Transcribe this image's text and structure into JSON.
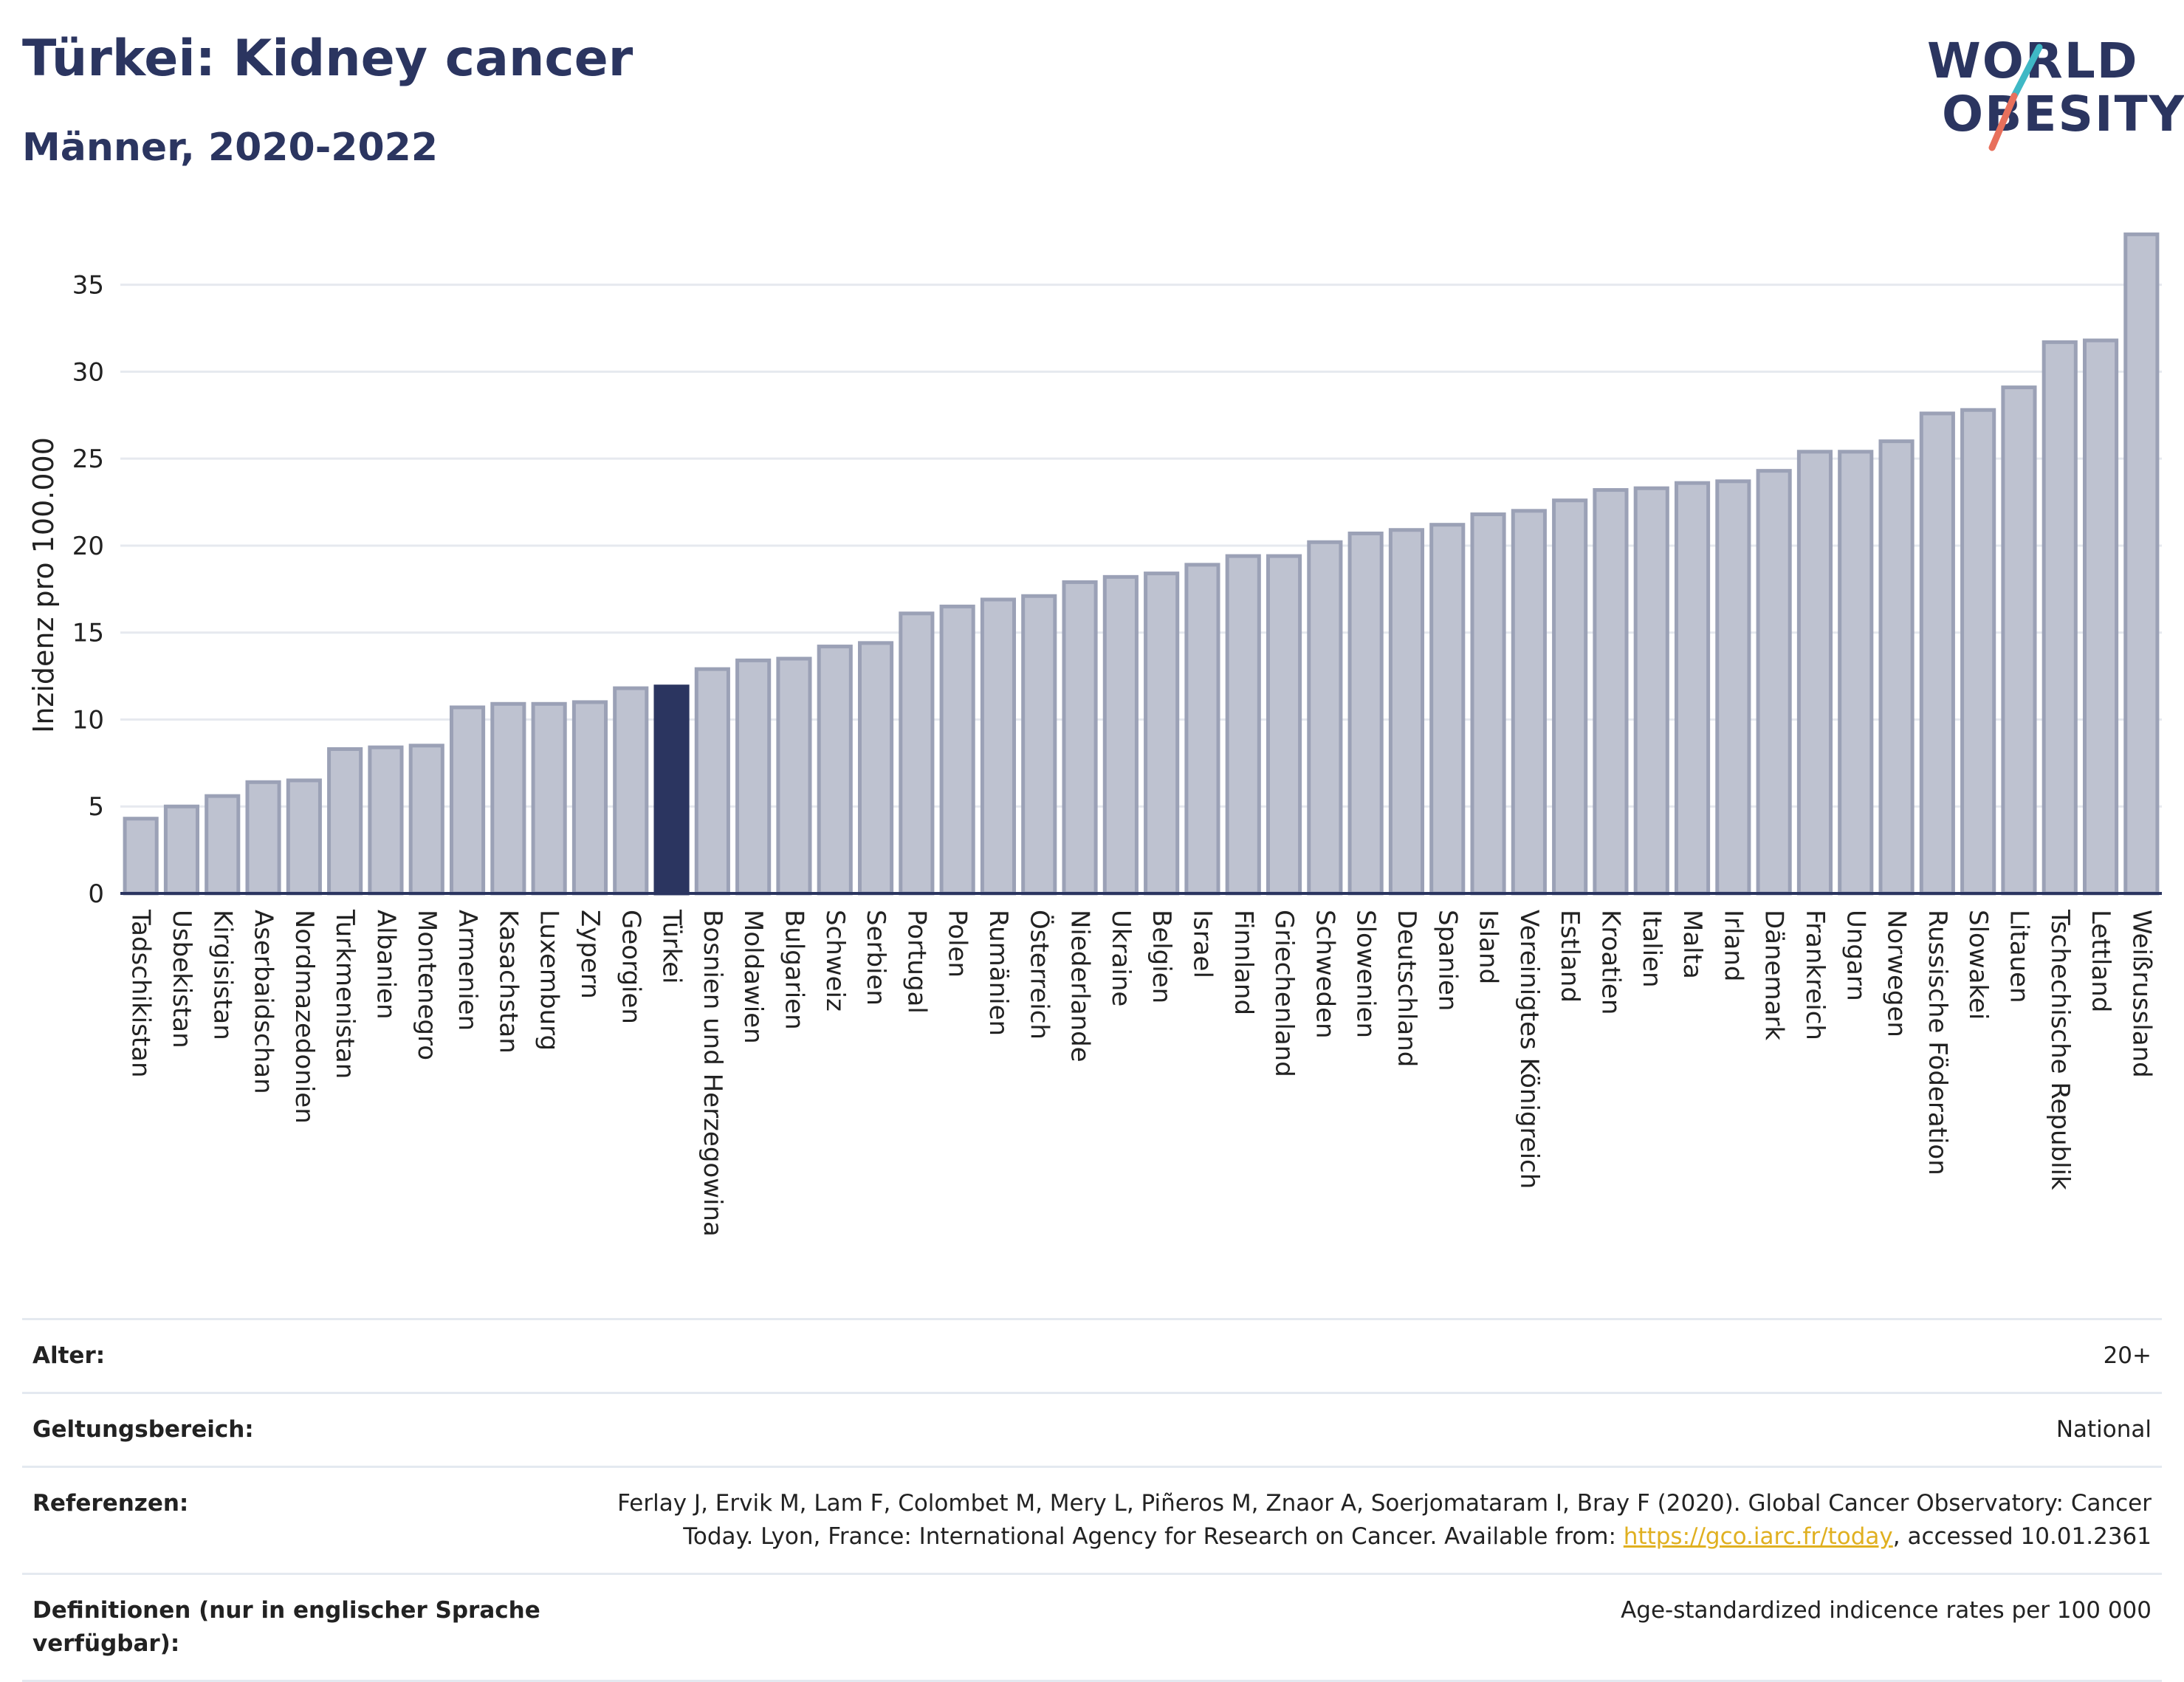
{
  "header": {
    "title": "Türkei: Kidney cancer",
    "subtitle": "Männer, 2020-2022"
  },
  "logo": {
    "line1": "WORLD",
    "line2": "OBESITY",
    "slash_colors": [
      "#3fb8c5",
      "#e8705c"
    ]
  },
  "colors": {
    "bar": "#bec2d0",
    "bar_border": "#9ba1b6",
    "highlight": "#2b3560",
    "axis": "#2b3560",
    "grid": "#e6e9ef",
    "link": "#e0b020"
  },
  "chart_data": {
    "type": "bar",
    "title": "Türkei: Kidney cancer",
    "subtitle": "Männer, 2020-2022",
    "xlabel": "",
    "ylabel": "Inzidenz pro 100.000",
    "ylim": [
      0,
      38
    ],
    "yticks": [
      0,
      5,
      10,
      15,
      20,
      25,
      30,
      35
    ],
    "grid": true,
    "highlight": "Türkei",
    "categories": [
      "Tadschikistan",
      "Usbekistan",
      "Kirgisistan",
      "Aserbaidschan",
      "Nordmazedonien",
      "Turkmenistan",
      "Albanien",
      "Montenegro",
      "Armenien",
      "Kasachstan",
      "Luxemburg",
      "Zypern",
      "Georgien",
      "Türkei",
      "Bosnien und Herzegowina",
      "Moldawien",
      "Bulgarien",
      "Schweiz",
      "Serbien",
      "Portugal",
      "Polen",
      "Rumänien",
      "Österreich",
      "Niederlande",
      "Ukraine",
      "Belgien",
      "Israel",
      "Finnland",
      "Griechenland",
      "Schweden",
      "Slowenien",
      "Deutschland",
      "Spanien",
      "Island",
      "Vereinigtes Königreich",
      "Estland",
      "Kroatien",
      "Italien",
      "Malta",
      "Irland",
      "Dänemark",
      "Frankreich",
      "Ungarn",
      "Norwegen",
      "Russische Föderation",
      "Slowakei",
      "Litauen",
      "Tschechische Republik",
      "Lettland",
      "Weißrussland"
    ],
    "values": [
      4.3,
      5.0,
      5.6,
      6.4,
      6.5,
      8.3,
      8.4,
      8.5,
      10.7,
      10.9,
      10.9,
      11.0,
      11.8,
      11.9,
      12.9,
      13.4,
      13.5,
      14.2,
      14.4,
      16.1,
      16.5,
      16.9,
      17.1,
      17.9,
      18.2,
      18.4,
      18.9,
      19.4,
      19.4,
      20.2,
      20.7,
      20.9,
      21.2,
      21.8,
      22.0,
      22.6,
      23.2,
      23.3,
      23.6,
      23.7,
      24.3,
      25.4,
      25.4,
      26.0,
      27.6,
      27.8,
      29.1,
      31.7,
      31.8,
      37.9
    ]
  },
  "info": {
    "rows": [
      {
        "key": "Alter:",
        "value": "20+"
      },
      {
        "key": "Geltungsbereich:",
        "value": "National"
      },
      {
        "key": "Referenzen:",
        "value_before": "Ferlay J, Ervik M, Lam F, Colombet M, Mery L, Piñeros M, Znaor A, Soerjomataram I, Bray F (2020). Global Cancer Observatory: Cancer Today. Lyon, France: International Agency for Research on Cancer. Available from: ",
        "link": "https://gco.iarc.fr/today",
        "value_after": ", accessed 10.01.2361"
      },
      {
        "key": "Definitionen (nur in englischer Sprache verfügbar):",
        "value": "Age-standardized indicence rates per 100 000"
      }
    ]
  }
}
